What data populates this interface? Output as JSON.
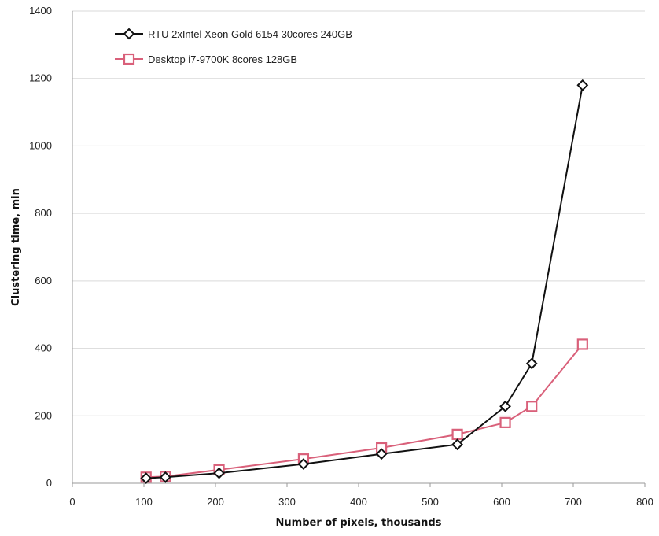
{
  "chart_data": {
    "type": "line",
    "title": "",
    "xlabel": "Number of pixels, thousands",
    "ylabel": "Clustering time, min",
    "xlim": [
      0,
      800
    ],
    "ylim": [
      0,
      1400
    ],
    "x_ticks": [
      0,
      100,
      200,
      300,
      400,
      500,
      600,
      700,
      800
    ],
    "y_ticks": [
      0,
      200,
      400,
      600,
      800,
      1000,
      1200,
      1400
    ],
    "grid": "horizontal",
    "legend_position": "top-left",
    "series": [
      {
        "name": "RTU 2xIntel Xeon Gold 6154 30cores 240GB",
        "color": "#111111",
        "marker": "diamond-open",
        "x": [
          103,
          130,
          205,
          323,
          432,
          538,
          605,
          642,
          713
        ],
        "y": [
          15,
          18,
          30,
          57,
          87,
          115,
          228,
          355,
          1180
        ]
      },
      {
        "name": "Desktop i7-9700K 8cores 128GB",
        "color": "#d9607a",
        "marker": "square-open",
        "x": [
          103,
          130,
          205,
          323,
          432,
          538,
          605,
          642,
          713
        ],
        "y": [
          18,
          20,
          40,
          72,
          105,
          145,
          180,
          228,
          412
        ]
      }
    ]
  }
}
